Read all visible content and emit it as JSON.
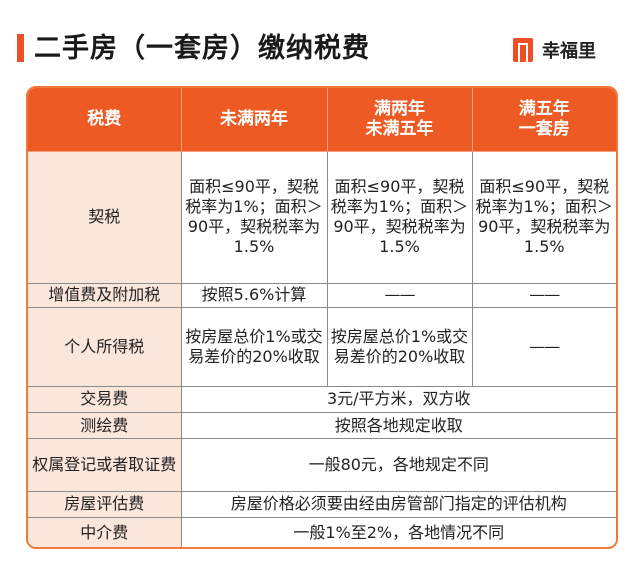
{
  "header": {
    "title": "二手房（一套房）缴纳税费",
    "brand_name": "幸福里",
    "brand_color": "#ee4f23",
    "accent_color": "#ee5a24"
  },
  "table": {
    "columns": [
      {
        "line1": "税费",
        "line2": ""
      },
      {
        "line1": "未满两年",
        "line2": ""
      },
      {
        "line1": "满两年",
        "line2": "未满五年"
      },
      {
        "line1": "满五年",
        "line2": "一套房"
      }
    ],
    "rows": {
      "deed": {
        "name": "契税",
        "c1": "面积≤90平，契税税率为1%；面积＞90平，契税税率为1.5%",
        "c2": "面积≤90平，契税税率为1%；面积＞90平，契税税率为1.5%",
        "c3": "面积≤90平，契税税率为1%；面积＞90平，契税税率为1.5%"
      },
      "vat": {
        "name": "增值费及附加税",
        "c1": "按照5.6%计算",
        "c2": "——",
        "c3": "——"
      },
      "income": {
        "name": "个人所得税",
        "c1": "按房屋总价1%或交易差价的20%收取",
        "c2": "按房屋总价1%或交易差价的20%收取",
        "c3": "——"
      },
      "transaction": {
        "name": "交易费",
        "value": "3元/平方米，双方收"
      },
      "survey": {
        "name": "测绘费",
        "value": "按照各地规定收取"
      },
      "registration": {
        "name": "权属登记或者取证费",
        "value": "一般80元，各地规定不同"
      },
      "appraisal": {
        "name": "房屋评估费",
        "value": "房屋价格必须要由经由房管部门指定的评估机构"
      },
      "agency": {
        "name": "中介费",
        "value": "一般1%至2%，各地情况不同"
      }
    }
  }
}
